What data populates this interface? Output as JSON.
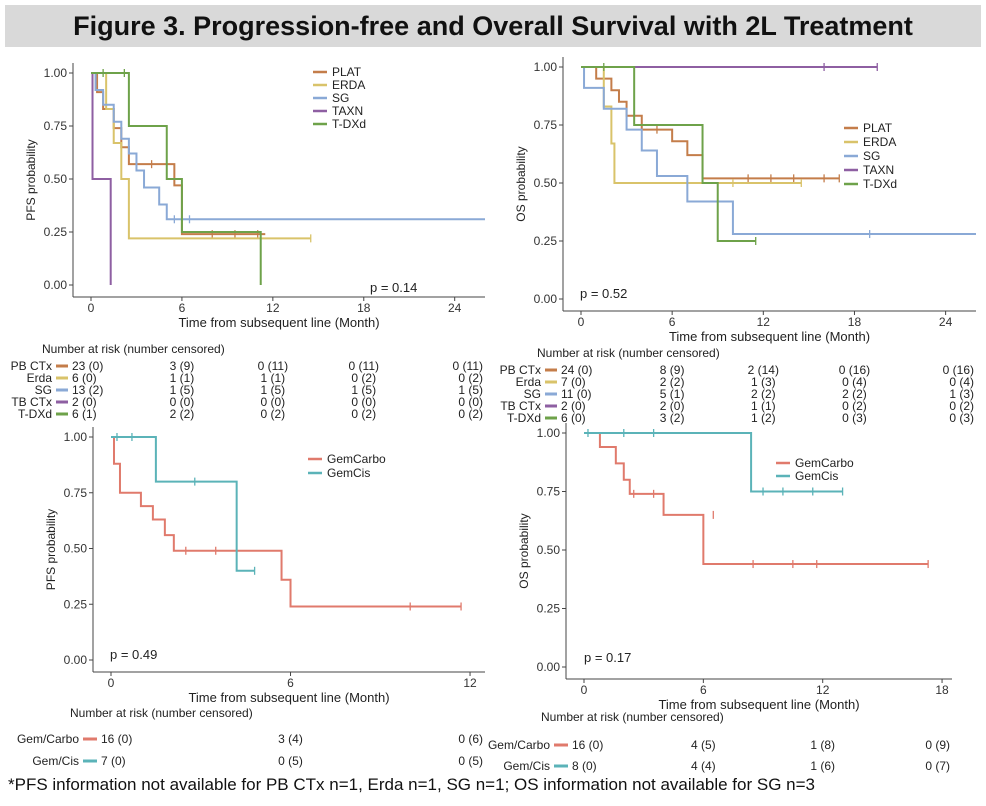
{
  "title": "Figure 3. Progression-free and Overall Survival with 2L Treatment",
  "footnote": "*PFS information not available for PB CTx n=1, Erda n=1, SG n=1; OS information not available for SG n=3",
  "chart_data": [
    {
      "id": "pfs-2l",
      "type": "kaplan-meier",
      "xlabel": "Time from subsequent line (Month)",
      "ylabel": "PFS probability",
      "xlim": [
        0,
        26
      ],
      "ylim": [
        0,
        1
      ],
      "xticks": [
        0,
        6,
        12,
        18,
        24
      ],
      "yticks": [
        0,
        0.25,
        0.5,
        0.75,
        1
      ],
      "yticklabels": [
        "0.00",
        "0.25",
        "0.50",
        "0.75",
        "1.00"
      ],
      "pvalue": "p = 0.14",
      "legend_position": "top-center",
      "series": [
        {
          "name": "PLAT",
          "color": "#c47d4a",
          "steps": [
            [
              0,
              1
            ],
            [
              0.4,
              0.91
            ],
            [
              0.8,
              0.83
            ],
            [
              1.5,
              0.74
            ],
            [
              2,
              0.65
            ],
            [
              2.5,
              0.57
            ],
            [
              5.5,
              0.47
            ],
            [
              6,
              0.24
            ],
            [
              11.5,
              0.24
            ]
          ],
          "censors": [
            [
              3,
              0.57
            ],
            [
              4,
              0.57
            ],
            [
              5,
              0.57
            ],
            [
              8,
              0.24
            ],
            [
              9.5,
              0.24
            ],
            [
              11,
              0.24
            ]
          ]
        },
        {
          "name": "ERDA",
          "color": "#d9c36a",
          "steps": [
            [
              0,
              1
            ],
            [
              1,
              0.83
            ],
            [
              1.5,
              0.67
            ],
            [
              2,
              0.5
            ],
            [
              2.5,
              0.22
            ],
            [
              14.5,
              0.22
            ]
          ],
          "censors": [
            [
              14.5,
              0.22
            ]
          ]
        },
        {
          "name": "SG",
          "color": "#8aa9d6",
          "steps": [
            [
              0,
              1
            ],
            [
              0.3,
              0.92
            ],
            [
              0.8,
              0.85
            ],
            [
              1.5,
              0.77
            ],
            [
              2,
              0.69
            ],
            [
              2.5,
              0.62
            ],
            [
              3,
              0.54
            ],
            [
              3.5,
              0.46
            ],
            [
              4.5,
              0.38
            ],
            [
              5,
              0.31
            ],
            [
              26,
              0.31
            ]
          ],
          "censors": [
            [
              5.5,
              0.31
            ],
            [
              6.5,
              0.31
            ]
          ]
        },
        {
          "name": "TAXN",
          "color": "#8e5fa2",
          "steps": [
            [
              0,
              1
            ],
            [
              0.1,
              0.5
            ],
            [
              1.3,
              0.5
            ],
            [
              1.3,
              0
            ]
          ],
          "censors": []
        },
        {
          "name": "T-DXd",
          "color": "#6ea24a",
          "steps": [
            [
              0,
              1
            ],
            [
              2.5,
              0.75
            ],
            [
              5,
              0.5
            ],
            [
              6,
              0.25
            ],
            [
              11.2,
              0.25
            ],
            [
              11.2,
              0
            ]
          ],
          "censors": [
            [
              0.8,
              1
            ],
            [
              2.2,
              1
            ]
          ]
        }
      ],
      "risk_table": {
        "title": "Number at risk (number censored)",
        "times": [
          0,
          6,
          12,
          18,
          24
        ],
        "rows": [
          {
            "label": "PB CTx",
            "color": "#c47d4a",
            "values": [
              "23 (0)",
              "3 (9)",
              "0 (11)",
              "0 (11)",
              "0 (11)"
            ]
          },
          {
            "label": "Erda",
            "color": "#d9c36a",
            "values": [
              "6 (0)",
              "1 (1)",
              "1 (1)",
              "0 (2)",
              "0 (2)"
            ]
          },
          {
            "label": "SG",
            "color": "#8aa9d6",
            "values": [
              "13 (2)",
              "1 (5)",
              "1 (5)",
              "1 (5)",
              "1 (5)"
            ]
          },
          {
            "label": "TB CTx",
            "color": "#8e5fa2",
            "values": [
              "2 (0)",
              "0 (0)",
              "0 (0)",
              "0 (0)",
              "0 (0)"
            ]
          },
          {
            "label": "T-DXd",
            "color": "#6ea24a",
            "values": [
              "6 (1)",
              "2 (2)",
              "0 (2)",
              "0 (2)",
              "0 (2)"
            ]
          }
        ]
      }
    },
    {
      "id": "os-2l",
      "type": "kaplan-meier",
      "xlabel": "Time from subsequent line (Month)",
      "ylabel": "OS probability",
      "xlim": [
        0,
        26
      ],
      "ylim": [
        0,
        1
      ],
      "xticks": [
        0,
        6,
        12,
        18,
        24
      ],
      "yticks": [
        0,
        0.25,
        0.5,
        0.75,
        1
      ],
      "yticklabels": [
        "0.00",
        "0.25",
        "0.50",
        "0.75",
        "1.00"
      ],
      "pvalue": "p = 0.52",
      "legend_position": "right",
      "series": [
        {
          "name": "PLAT",
          "color": "#c47d4a",
          "steps": [
            [
              0,
              1
            ],
            [
              1,
              0.95
            ],
            [
              2,
              0.9
            ],
            [
              2.5,
              0.85
            ],
            [
              3,
              0.79
            ],
            [
              4,
              0.73
            ],
            [
              6,
              0.68
            ],
            [
              7,
              0.62
            ],
            [
              8,
              0.52
            ],
            [
              17,
              0.52
            ]
          ],
          "censors": [
            [
              5,
              0.73
            ],
            [
              11,
              0.52
            ],
            [
              12.5,
              0.52
            ],
            [
              14,
              0.52
            ],
            [
              16,
              0.52
            ],
            [
              17,
              0.52
            ]
          ]
        },
        {
          "name": "ERDA",
          "color": "#d9c36a",
          "steps": [
            [
              0,
              1
            ],
            [
              1.5,
              0.83
            ],
            [
              2,
              0.67
            ],
            [
              2.2,
              0.5
            ],
            [
              14.5,
              0.5
            ]
          ],
          "censors": [
            [
              7,
              0.5
            ],
            [
              10,
              0.5
            ],
            [
              14.5,
              0.5
            ]
          ]
        },
        {
          "name": "SG",
          "color": "#8aa9d6",
          "steps": [
            [
              0,
              1
            ],
            [
              0.2,
              0.91
            ],
            [
              1.5,
              0.91
            ],
            [
              1.5,
              0.82
            ],
            [
              3,
              0.73
            ],
            [
              4,
              0.64
            ],
            [
              5,
              0.53
            ],
            [
              7,
              0.42
            ],
            [
              9,
              0.42
            ],
            [
              10,
              0.28
            ],
            [
              26,
              0.28
            ]
          ],
          "censors": [
            [
              19,
              0.28
            ]
          ]
        },
        {
          "name": "TAXN",
          "color": "#8e5fa2",
          "steps": [
            [
              0,
              1
            ],
            [
              19.5,
              1
            ]
          ],
          "censors": [
            [
              16,
              1
            ],
            [
              19.5,
              1
            ]
          ]
        },
        {
          "name": "T-DXd",
          "color": "#6ea24a",
          "steps": [
            [
              0,
              1
            ],
            [
              3.5,
              0.75
            ],
            [
              8,
              0.75
            ],
            [
              8,
              0.5
            ],
            [
              9,
              0.25
            ],
            [
              11.5,
              0.25
            ]
          ],
          "censors": [
            [
              1.5,
              1
            ],
            [
              11.5,
              0.25
            ]
          ]
        }
      ],
      "risk_table": {
        "title": "Number at risk (number censored)",
        "times": [
          0,
          6,
          12,
          18,
          24
        ],
        "rows": [
          {
            "label": "PB CTx",
            "color": "#c47d4a",
            "values": [
              "24 (0)",
              "8 (9)",
              "2 (14)",
              "0 (16)",
              "0 (16)"
            ]
          },
          {
            "label": "Erda",
            "color": "#d9c36a",
            "values": [
              "7 (0)",
              "2 (2)",
              "1 (3)",
              "0 (4)",
              "0 (4)"
            ]
          },
          {
            "label": "SG",
            "color": "#8aa9d6",
            "values": [
              "11 (0)",
              "5 (1)",
              "2 (2)",
              "2 (2)",
              "1 (3)"
            ]
          },
          {
            "label": "TB CTx",
            "color": "#8e5fa2",
            "values": [
              "2 (0)",
              "2 (0)",
              "1 (1)",
              "0 (2)",
              "0 (2)"
            ]
          },
          {
            "label": "T-DXd",
            "color": "#6ea24a",
            "values": [
              "6 (0)",
              "3 (2)",
              "1 (2)",
              "0 (3)",
              "0 (3)"
            ]
          }
        ]
      }
    },
    {
      "id": "pfs-gem",
      "type": "kaplan-meier",
      "xlabel": "Time from subsequent line (Month)",
      "ylabel": "PFS probability",
      "xlim": [
        0,
        12.5
      ],
      "ylim": [
        0,
        1
      ],
      "xticks": [
        0,
        6,
        12
      ],
      "yticks": [
        0,
        0.25,
        0.5,
        0.75,
        1
      ],
      "yticklabels": [
        "0.00",
        "0.25",
        "0.50",
        "0.75",
        "1.00"
      ],
      "pvalue": "p = 0.49",
      "legend_position": "top-right",
      "series": [
        {
          "name": "GemCarbo",
          "color": "#e07a6c",
          "steps": [
            [
              0,
              1
            ],
            [
              0.1,
              0.88
            ],
            [
              0.3,
              0.75
            ],
            [
              1,
              0.69
            ],
            [
              1.4,
              0.63
            ],
            [
              1.8,
              0.56
            ],
            [
              2.1,
              0.49
            ],
            [
              5.7,
              0.36
            ],
            [
              6,
              0.24
            ],
            [
              11.7,
              0.24
            ]
          ],
          "censors": [
            [
              2.5,
              0.49
            ],
            [
              3.5,
              0.49
            ],
            [
              10,
              0.24
            ],
            [
              11.7,
              0.24
            ]
          ]
        },
        {
          "name": "GemCis",
          "color": "#5bb3b8",
          "steps": [
            [
              0,
              1
            ],
            [
              1.5,
              0.8
            ],
            [
              4.2,
              0.4
            ],
            [
              4.8,
              0.4
            ]
          ],
          "censors": [
            [
              0.2,
              1
            ],
            [
              0.7,
              1
            ],
            [
              2.8,
              0.8
            ],
            [
              4.8,
              0.4
            ]
          ]
        }
      ],
      "risk_table": {
        "title": "Number at risk (number censored)",
        "times": [
          0,
          6,
          12
        ],
        "rows": [
          {
            "label": "Gem/Carbo",
            "color": "#e07a6c",
            "values": [
              "16 (0)",
              "3 (4)",
              "0 (6)"
            ]
          },
          {
            "label": "Gem/Cis",
            "color": "#5bb3b8",
            "values": [
              "7 (0)",
              "0 (5)",
              "0 (5)"
            ]
          }
        ]
      }
    },
    {
      "id": "os-gem",
      "type": "kaplan-meier",
      "xlabel": "Time from subsequent line (Month)",
      "ylabel": "OS probability",
      "xlim": [
        0,
        18.5
      ],
      "ylim": [
        0,
        1
      ],
      "xticks": [
        0,
        6,
        12,
        18
      ],
      "yticks": [
        0,
        0.25,
        0.5,
        0.75,
        1
      ],
      "yticklabels": [
        "0.00",
        "0.25",
        "0.50",
        "0.75",
        "1.00"
      ],
      "pvalue": "p = 0.17",
      "legend_position": "top-right",
      "series": [
        {
          "name": "GemCarbo",
          "color": "#e07a6c",
          "steps": [
            [
              0,
              1
            ],
            [
              0.8,
              0.94
            ],
            [
              1.6,
              0.87
            ],
            [
              2,
              0.8
            ],
            [
              2.3,
              0.74
            ],
            [
              4,
              0.65
            ],
            [
              5,
              0.65
            ],
            [
              6,
              0.44
            ],
            [
              17.3,
              0.44
            ]
          ],
          "censors": [
            [
              2.5,
              0.74
            ],
            [
              3.5,
              0.74
            ],
            [
              6.5,
              0.65
            ],
            [
              8.5,
              0.44
            ],
            [
              10.5,
              0.44
            ],
            [
              11.7,
              0.44
            ],
            [
              17.3,
              0.44
            ]
          ]
        },
        {
          "name": "GemCis",
          "color": "#5bb3b8",
          "steps": [
            [
              0,
              1
            ],
            [
              8.4,
              1
            ],
            [
              8.4,
              0.75
            ],
            [
              13,
              0.75
            ]
          ],
          "censors": [
            [
              0.2,
              1
            ],
            [
              2,
              1
            ],
            [
              3.5,
              1
            ],
            [
              9,
              0.75
            ],
            [
              10,
              0.75
            ],
            [
              11.5,
              0.75
            ],
            [
              13,
              0.75
            ]
          ]
        }
      ],
      "risk_table": {
        "title": "Number at risk (number censored)",
        "times": [
          0,
          6,
          12,
          18
        ],
        "rows": [
          {
            "label": "Gem/Carbo",
            "color": "#e07a6c",
            "values": [
              "16 (0)",
              "4 (5)",
              "1 (8)",
              "0 (9)"
            ]
          },
          {
            "label": "Gem/Cis",
            "color": "#5bb3b8",
            "values": [
              "8 (0)",
              "4 (4)",
              "1 (6)",
              "0 (7)"
            ]
          }
        ]
      }
    }
  ]
}
